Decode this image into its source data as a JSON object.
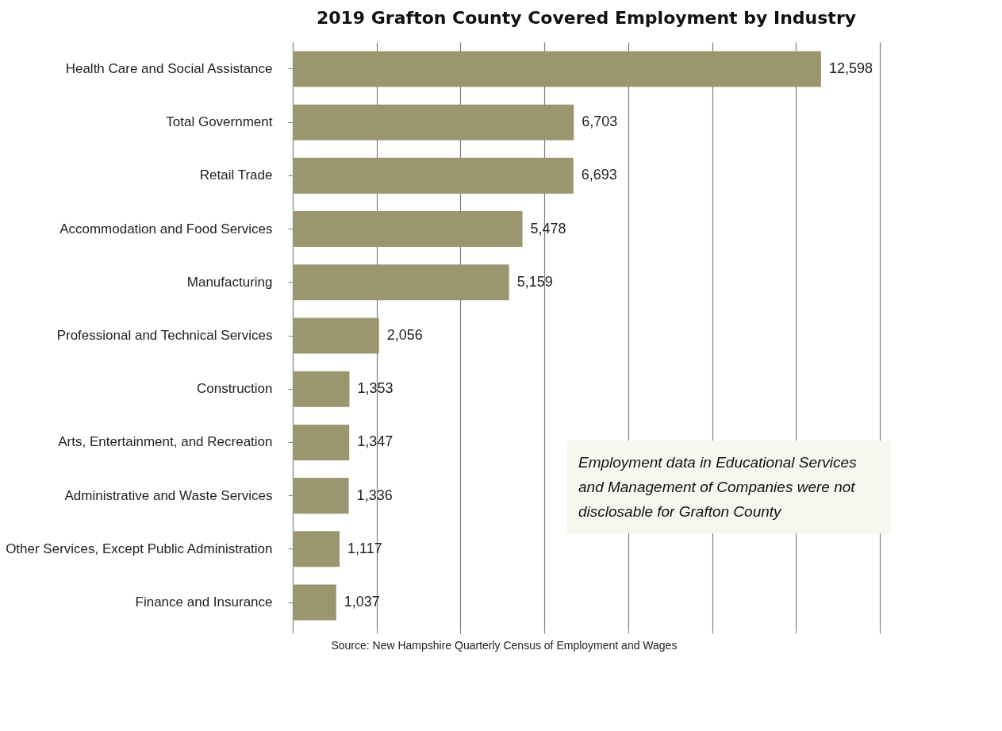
{
  "chart_data": {
    "type": "bar",
    "orientation": "horizontal",
    "title": "2019 Grafton County Covered Employment by Industry",
    "categories": [
      "Health Care and Social Assistance",
      "Total Government",
      "Retail Trade",
      "Accommodation and Food Services",
      "Manufacturing",
      "Professional and Technical Services",
      "Construction",
      "Arts, Entertainment, and Recreation",
      "Administrative and Waste Services",
      "Other Services, Except Public Administration",
      "Finance and Insurance"
    ],
    "values": [
      12598,
      6703,
      6693,
      5478,
      5159,
      2056,
      1353,
      1347,
      1336,
      1117,
      1037
    ],
    "value_labels": [
      "12,598",
      "6,703",
      "6,693",
      "5,478",
      "5,159",
      "2,056",
      "1,353",
      "1,347",
      "1,336",
      "1,117",
      "1,037"
    ],
    "color": "#9c9670",
    "tick_labels": "y",
    "grid": "x",
    "annotations": [
      "Employment data in Educational Services and Management of Companies were not disclosable for Grafton County",
      "Source: New Hampshire Quarterly Census of Employment and Wages"
    ]
  }
}
